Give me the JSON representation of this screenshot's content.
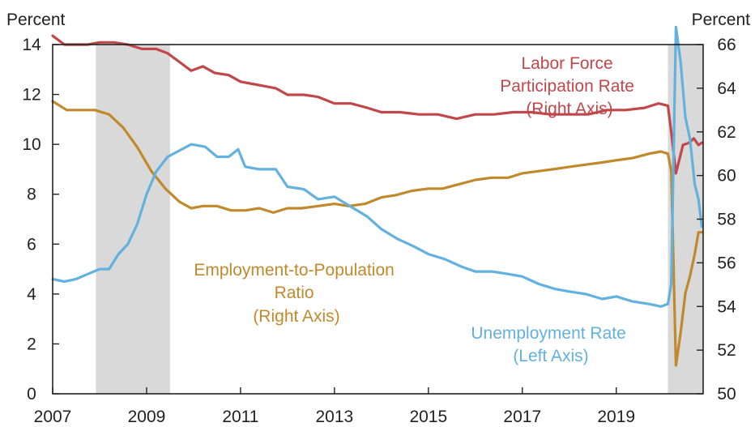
{
  "chart_data": {
    "type": "line",
    "left_axis": {
      "unit": "Percent",
      "ylim": [
        0,
        14
      ],
      "ticks": [
        0,
        2,
        4,
        6,
        8,
        10,
        12,
        14
      ]
    },
    "right_axis": {
      "unit": "Percent",
      "ylim": [
        50,
        66
      ],
      "ticks": [
        50,
        52,
        54,
        56,
        58,
        60,
        62,
        64,
        66
      ]
    },
    "x_axis": {
      "xlim": [
        2007,
        2020.85
      ],
      "ticks": [
        2007,
        2009,
        2011,
        2013,
        2015,
        2017,
        2019
      ]
    },
    "shaded_periods": [
      {
        "start": 2007.92,
        "end": 2009.5
      },
      {
        "start": 2020.1,
        "end": 2020.85
      }
    ],
    "series": [
      {
        "name": "Labor Force Participation Rate",
        "annotation": [
          "Labor Force",
          "Participation Rate",
          "(Right Axis)"
        ],
        "axis": "right",
        "color": "#c0474a",
        "points": [
          [
            2007.0,
            66.4
          ],
          [
            2007.25,
            66.0
          ],
          [
            2007.5,
            66.0
          ],
          [
            2007.75,
            66.0
          ],
          [
            2008.0,
            66.1
          ],
          [
            2008.3,
            66.1
          ],
          [
            2008.6,
            66.0
          ],
          [
            2008.9,
            65.8
          ],
          [
            2009.2,
            65.8
          ],
          [
            2009.45,
            65.6
          ],
          [
            2009.7,
            65.2
          ],
          [
            2009.95,
            64.8
          ],
          [
            2010.2,
            65.0
          ],
          [
            2010.45,
            64.7
          ],
          [
            2010.75,
            64.6
          ],
          [
            2011.0,
            64.3
          ],
          [
            2011.25,
            64.2
          ],
          [
            2011.5,
            64.1
          ],
          [
            2011.75,
            64.0
          ],
          [
            2012.0,
            63.7
          ],
          [
            2012.35,
            63.7
          ],
          [
            2012.65,
            63.6
          ],
          [
            2013.0,
            63.3
          ],
          [
            2013.35,
            63.3
          ],
          [
            2013.7,
            63.1
          ],
          [
            2014.0,
            62.9
          ],
          [
            2014.4,
            62.9
          ],
          [
            2014.8,
            62.8
          ],
          [
            2015.2,
            62.8
          ],
          [
            2015.6,
            62.6
          ],
          [
            2016.0,
            62.8
          ],
          [
            2016.4,
            62.8
          ],
          [
            2016.8,
            62.9
          ],
          [
            2017.2,
            62.9
          ],
          [
            2017.6,
            62.8
          ],
          [
            2018.0,
            62.8
          ],
          [
            2018.4,
            62.8
          ],
          [
            2018.8,
            63.0
          ],
          [
            2019.2,
            63.0
          ],
          [
            2019.6,
            63.1
          ],
          [
            2019.9,
            63.3
          ],
          [
            2020.1,
            63.2
          ],
          [
            2020.17,
            62.0
          ],
          [
            2020.27,
            60.1
          ],
          [
            2020.42,
            61.4
          ],
          [
            2020.55,
            61.5
          ],
          [
            2020.65,
            61.7
          ],
          [
            2020.75,
            61.4
          ],
          [
            2020.82,
            61.5
          ]
        ]
      },
      {
        "name": "Employment-to-Population Ratio",
        "annotation": [
          "Employment-to-Population",
          "Ratio",
          "(Right Axis)"
        ],
        "axis": "right",
        "color": "#c08a2c",
        "points": [
          [
            2007.0,
            63.4
          ],
          [
            2007.3,
            63.0
          ],
          [
            2007.6,
            63.0
          ],
          [
            2007.9,
            63.0
          ],
          [
            2008.2,
            62.8
          ],
          [
            2008.5,
            62.2
          ],
          [
            2008.8,
            61.3
          ],
          [
            2009.1,
            60.2
          ],
          [
            2009.4,
            59.4
          ],
          [
            2009.7,
            58.8
          ],
          [
            2009.95,
            58.5
          ],
          [
            2010.2,
            58.6
          ],
          [
            2010.5,
            58.6
          ],
          [
            2010.8,
            58.4
          ],
          [
            2011.1,
            58.4
          ],
          [
            2011.4,
            58.5
          ],
          [
            2011.7,
            58.3
          ],
          [
            2012.0,
            58.5
          ],
          [
            2012.3,
            58.5
          ],
          [
            2012.65,
            58.6
          ],
          [
            2013.0,
            58.7
          ],
          [
            2013.3,
            58.6
          ],
          [
            2013.65,
            58.7
          ],
          [
            2014.0,
            59.0
          ],
          [
            2014.3,
            59.1
          ],
          [
            2014.65,
            59.3
          ],
          [
            2015.0,
            59.4
          ],
          [
            2015.3,
            59.4
          ],
          [
            2015.65,
            59.6
          ],
          [
            2016.0,
            59.8
          ],
          [
            2016.35,
            59.9
          ],
          [
            2016.7,
            59.9
          ],
          [
            2017.0,
            60.1
          ],
          [
            2017.35,
            60.2
          ],
          [
            2017.7,
            60.3
          ],
          [
            2018.0,
            60.4
          ],
          [
            2018.35,
            60.5
          ],
          [
            2018.7,
            60.6
          ],
          [
            2019.0,
            60.7
          ],
          [
            2019.35,
            60.8
          ],
          [
            2019.7,
            61.0
          ],
          [
            2019.95,
            61.1
          ],
          [
            2020.1,
            61.0
          ],
          [
            2020.17,
            60.2
          ],
          [
            2020.27,
            51.3
          ],
          [
            2020.37,
            52.8
          ],
          [
            2020.47,
            54.6
          ],
          [
            2020.57,
            55.4
          ],
          [
            2020.67,
            56.4
          ],
          [
            2020.75,
            57.4
          ],
          [
            2020.82,
            57.4
          ]
        ]
      },
      {
        "name": "Unemployment Rate",
        "annotation": [
          "Unemployment Rate",
          "(Left Axis)"
        ],
        "axis": "left",
        "color": "#62b1de",
        "points": [
          [
            2007.0,
            4.6
          ],
          [
            2007.25,
            4.5
          ],
          [
            2007.5,
            4.6
          ],
          [
            2007.75,
            4.8
          ],
          [
            2008.0,
            5.0
          ],
          [
            2008.2,
            5.0
          ],
          [
            2008.4,
            5.6
          ],
          [
            2008.6,
            6.0
          ],
          [
            2008.8,
            6.8
          ],
          [
            2009.0,
            8.0
          ],
          [
            2009.2,
            8.9
          ],
          [
            2009.45,
            9.5
          ],
          [
            2009.75,
            9.8
          ],
          [
            2009.95,
            10.0
          ],
          [
            2010.25,
            9.9
          ],
          [
            2010.5,
            9.5
          ],
          [
            2010.75,
            9.5
          ],
          [
            2010.95,
            9.8
          ],
          [
            2011.1,
            9.1
          ],
          [
            2011.4,
            9.0
          ],
          [
            2011.75,
            9.0
          ],
          [
            2012.0,
            8.3
          ],
          [
            2012.35,
            8.2
          ],
          [
            2012.65,
            7.8
          ],
          [
            2013.0,
            7.9
          ],
          [
            2013.35,
            7.5
          ],
          [
            2013.7,
            7.1
          ],
          [
            2014.0,
            6.6
          ],
          [
            2014.35,
            6.2
          ],
          [
            2014.7,
            5.9
          ],
          [
            2015.0,
            5.6
          ],
          [
            2015.35,
            5.4
          ],
          [
            2015.7,
            5.1
          ],
          [
            2016.0,
            4.9
          ],
          [
            2016.35,
            4.9
          ],
          [
            2016.7,
            4.8
          ],
          [
            2017.0,
            4.7
          ],
          [
            2017.35,
            4.4
          ],
          [
            2017.7,
            4.2
          ],
          [
            2018.0,
            4.1
          ],
          [
            2018.35,
            4.0
          ],
          [
            2018.7,
            3.8
          ],
          [
            2019.0,
            3.9
          ],
          [
            2019.35,
            3.7
          ],
          [
            2019.7,
            3.6
          ],
          [
            2019.95,
            3.5
          ],
          [
            2020.1,
            3.6
          ],
          [
            2020.17,
            4.4
          ],
          [
            2020.27,
            14.7
          ],
          [
            2020.37,
            13.3
          ],
          [
            2020.47,
            11.1
          ],
          [
            2020.57,
            10.2
          ],
          [
            2020.67,
            8.4
          ],
          [
            2020.75,
            7.8
          ],
          [
            2020.82,
            6.7
          ]
        ]
      }
    ]
  }
}
